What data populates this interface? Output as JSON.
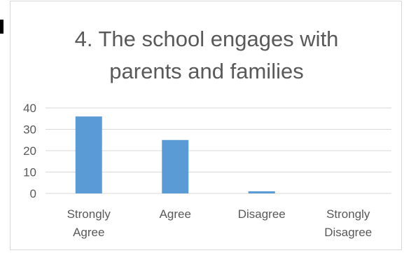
{
  "chart_data": {
    "type": "bar",
    "title": "4. The school engages with\nparents and families",
    "categories": [
      [
        "Strongly",
        "Agree"
      ],
      [
        "Agree"
      ],
      [
        "Disagree"
      ],
      [
        "Strongly",
        "Disagree"
      ]
    ],
    "values": [
      36,
      25,
      1,
      0
    ],
    "ylim": [
      0,
      40
    ],
    "yticks": [
      "0",
      "10",
      "20",
      "30",
      "40"
    ],
    "grid": true,
    "legend": "none",
    "colors": {
      "bar": "#5b9bd5",
      "grid": "#d9d9d9",
      "text": "#595959"
    }
  }
}
